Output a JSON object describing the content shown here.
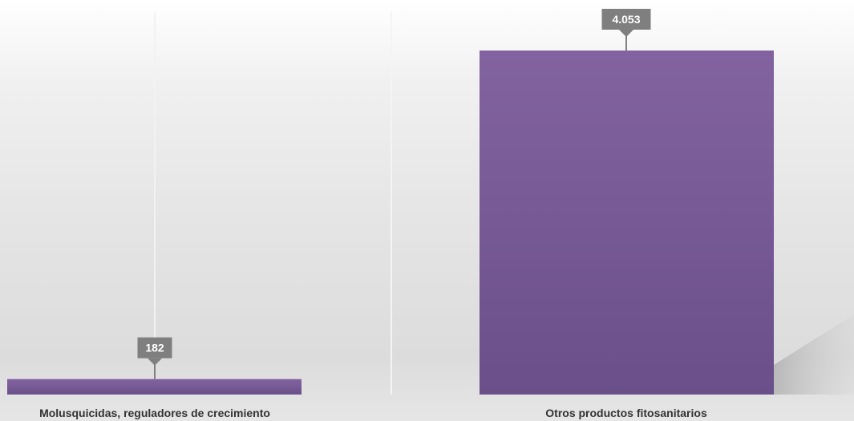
{
  "chart_data": {
    "type": "bar",
    "categories": [
      "Molusquicidas, reguladores de crecimiento",
      "Otros productos fitosanitarios"
    ],
    "values": [
      182,
      4053
    ],
    "value_labels": [
      "182",
      "4.053"
    ],
    "title": "",
    "xlabel": "",
    "ylabel": "",
    "ylim": [
      0,
      4053
    ],
    "grid": false,
    "legend": "none",
    "colors": {
      "bar": "#7a5c9c",
      "bar_top": "#8263a0",
      "bar_bottom": "#6a4f8a",
      "label_box": "#7f7f7f",
      "label_text": "#ffffff",
      "category_text": "#333333"
    }
  }
}
